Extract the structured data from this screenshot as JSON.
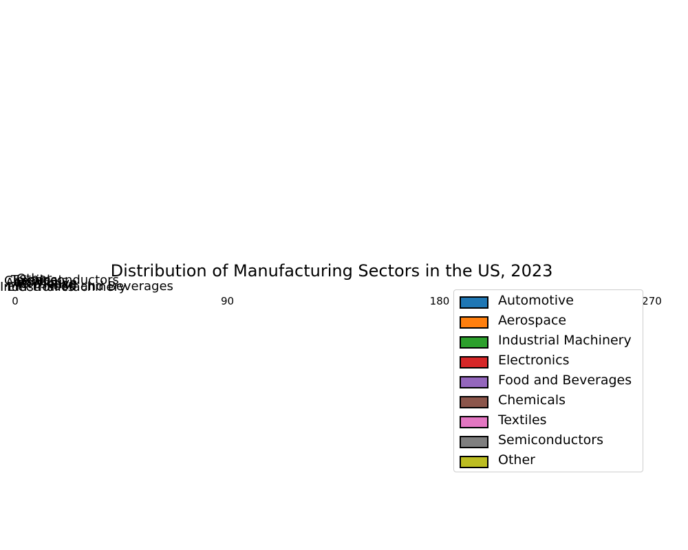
{
  "chart_data": {
    "type": "pie",
    "title": "Distribution of Manufacturing Sectors in the US, 2023",
    "categories": [
      "Automotive",
      "Aerospace",
      "Industrial Machinery",
      "Electronics",
      "Food and Beverages",
      "Chemicals",
      "Textiles",
      "Semiconductors",
      "Other"
    ],
    "colors": [
      "#1f77b4",
      "#ff7f0e",
      "#2ca02c",
      "#d62728",
      "#9467bd",
      "#8c564b",
      "#e377c2",
      "#7f7f7f",
      "#bcbd22"
    ],
    "angular_ticks": [
      "0",
      "90",
      "180",
      "270"
    ],
    "legend_position": "lower-right",
    "grid": false
  }
}
